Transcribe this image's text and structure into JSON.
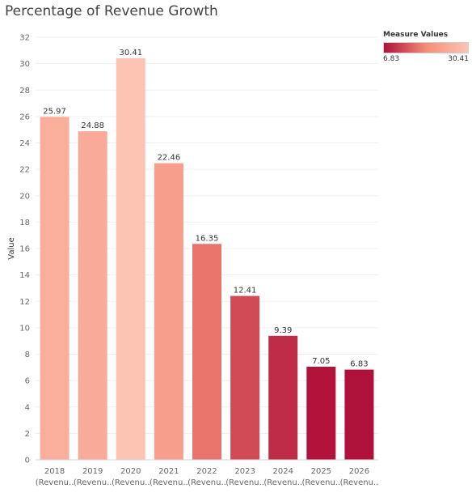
{
  "chart_data": {
    "type": "bar",
    "title": "Percentage of Revenue Growth",
    "ylabel": "Value",
    "xlabel": "",
    "categories": [
      "2018",
      "2019",
      "2020",
      "2021",
      "2022",
      "2023",
      "2024",
      "2025",
      "2026"
    ],
    "category_sublabels": [
      "(Revenu..",
      "(Revenu..",
      "(Revenu..",
      "(Revenu..",
      "(Revenu..",
      "(Revenu..",
      "(Revenu..",
      "(Revenu..",
      "(Revenu.."
    ],
    "values": [
      25.97,
      24.88,
      30.41,
      22.46,
      16.35,
      12.41,
      9.39,
      7.05,
      6.83
    ],
    "value_labels": [
      "25.97",
      "24.88",
      "30.41",
      "22.46",
      "16.35",
      "12.41",
      "9.39",
      "7.05",
      "6.83"
    ],
    "ylim": [
      0,
      32
    ],
    "yticks": [
      "0",
      "2",
      "4",
      "6",
      "8",
      "10",
      "12",
      "14",
      "16",
      "18",
      "20",
      "22",
      "24",
      "26",
      "28",
      "30",
      "32"
    ],
    "grid": "horizontal",
    "legend": {
      "title": "Measure Values",
      "min_label": "6.83",
      "max_label": "30.41",
      "placement": "top-right",
      "color_low": "#b0113a",
      "color_mid": "#f58c78",
      "color_high": "#fdc4b4"
    }
  }
}
